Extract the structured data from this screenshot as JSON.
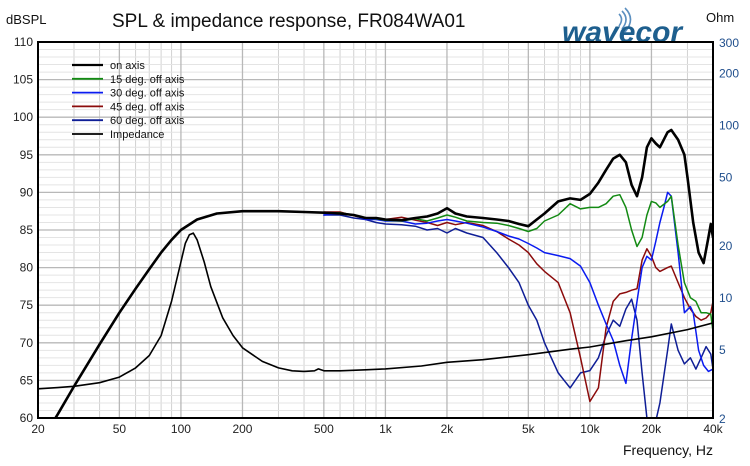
{
  "chart_data": {
    "type": "line",
    "title": "SPL & impedance response, FR084WA01",
    "brand": "wavecor",
    "ylabel": "dBSPL",
    "y2label": "Ohm",
    "xlabel": "Frequency, Hz",
    "xscale": "log",
    "xlim": [
      20,
      40000
    ],
    "ylim": [
      60,
      110
    ],
    "y2scale": "log",
    "y2lim": [
      2,
      300
    ],
    "grid": true,
    "legend_position": "top-left",
    "x_ticks": [
      {
        "value": 20,
        "label": "20"
      },
      {
        "value": 50,
        "label": "50"
      },
      {
        "value": 100,
        "label": "100"
      },
      {
        "value": 200,
        "label": "200"
      },
      {
        "value": 500,
        "label": "500"
      },
      {
        "value": 1000,
        "label": "1k"
      },
      {
        "value": 2000,
        "label": "2k"
      },
      {
        "value": 5000,
        "label": "5k"
      },
      {
        "value": 10000,
        "label": "10k"
      },
      {
        "value": 20000,
        "label": "20k"
      },
      {
        "value": 40000,
        "label": "40k"
      }
    ],
    "y_ticks": [
      60,
      65,
      70,
      75,
      80,
      85,
      90,
      95,
      100,
      105,
      110
    ],
    "y2_ticks": [
      2,
      5,
      10,
      20,
      50,
      100,
      200,
      300
    ],
    "series": [
      {
        "name": "on axis",
        "axis": "left",
        "color": "#000000",
        "width": 2.6,
        "points": [
          [
            22.5,
            58.5
          ],
          [
            25,
            60.5
          ],
          [
            30,
            64.2
          ],
          [
            40,
            69.8
          ],
          [
            50,
            74
          ],
          [
            60,
            77.2
          ],
          [
            70,
            79.8
          ],
          [
            80,
            82
          ],
          [
            90,
            83.7
          ],
          [
            100,
            85
          ],
          [
            120,
            86.4
          ],
          [
            150,
            87.2
          ],
          [
            200,
            87.5
          ],
          [
            300,
            87.5
          ],
          [
            400,
            87.4
          ],
          [
            500,
            87.3
          ],
          [
            600,
            87.2
          ],
          [
            700,
            87
          ],
          [
            800,
            86.6
          ],
          [
            900,
            86.6
          ],
          [
            1000,
            86.4
          ],
          [
            1200,
            86.3
          ],
          [
            1400,
            86.6
          ],
          [
            1600,
            86.8
          ],
          [
            1800,
            87.2
          ],
          [
            2000,
            87.9
          ],
          [
            2200,
            87.2
          ],
          [
            2500,
            86.8
          ],
          [
            3000,
            86.6
          ],
          [
            3500,
            86.4
          ],
          [
            4000,
            86.2
          ],
          [
            4500,
            85.8
          ],
          [
            5000,
            85.5
          ],
          [
            5500,
            86.4
          ],
          [
            6000,
            87.2
          ],
          [
            7000,
            88.8
          ],
          [
            8000,
            89.2
          ],
          [
            9000,
            89
          ],
          [
            10000,
            89.8
          ],
          [
            11000,
            91.3
          ],
          [
            12000,
            93
          ],
          [
            13000,
            94.5
          ],
          [
            14000,
            95
          ],
          [
            15000,
            94
          ],
          [
            16000,
            91
          ],
          [
            17000,
            89.5
          ],
          [
            18000,
            92
          ],
          [
            19000,
            96
          ],
          [
            20000,
            97.2
          ],
          [
            21000,
            96.5
          ],
          [
            22000,
            96
          ],
          [
            24000,
            98
          ],
          [
            25000,
            98.3
          ],
          [
            27000,
            97
          ],
          [
            29000,
            95
          ],
          [
            30000,
            92
          ],
          [
            32000,
            86
          ],
          [
            34000,
            82
          ],
          [
            36000,
            80.6
          ],
          [
            38000,
            84
          ],
          [
            39000,
            85.8
          ],
          [
            40000,
            84
          ]
        ]
      },
      {
        "name": "15 deg. off axis",
        "axis": "left",
        "color": "#138a13",
        "width": 1.5,
        "points": [
          [
            500,
            87.3
          ],
          [
            600,
            87.3
          ],
          [
            700,
            87
          ],
          [
            800,
            86.6
          ],
          [
            900,
            86.5
          ],
          [
            1000,
            86.3
          ],
          [
            1200,
            86.2
          ],
          [
            1400,
            86.5
          ],
          [
            1600,
            86.2
          ],
          [
            1800,
            86.6
          ],
          [
            2000,
            87
          ],
          [
            2200,
            86.7
          ],
          [
            2500,
            86.2
          ],
          [
            3000,
            86
          ],
          [
            3500,
            85.9
          ],
          [
            4000,
            85.6
          ],
          [
            4500,
            85.2
          ],
          [
            5000,
            84.8
          ],
          [
            5500,
            85.2
          ],
          [
            6000,
            86.2
          ],
          [
            7000,
            87
          ],
          [
            8000,
            88.5
          ],
          [
            9000,
            87.8
          ],
          [
            10000,
            88
          ],
          [
            11000,
            88
          ],
          [
            12000,
            88.5
          ],
          [
            13000,
            89.5
          ],
          [
            14000,
            89.7
          ],
          [
            15000,
            88
          ],
          [
            16000,
            85
          ],
          [
            17000,
            82.8
          ],
          [
            18000,
            84
          ],
          [
            19000,
            87
          ],
          [
            20000,
            88.8
          ],
          [
            21000,
            88.6
          ],
          [
            22000,
            88
          ],
          [
            24000,
            88.8
          ],
          [
            25000,
            89.5
          ],
          [
            27000,
            83
          ],
          [
            29000,
            78
          ],
          [
            31000,
            76
          ],
          [
            33000,
            75.5
          ],
          [
            35000,
            74
          ],
          [
            37000,
            74
          ],
          [
            39000,
            73.8
          ],
          [
            40000,
            71.5
          ]
        ]
      },
      {
        "name": "30 deg. off axis",
        "axis": "left",
        "color": "#0a1bf0",
        "width": 1.5,
        "points": [
          [
            500,
            87
          ],
          [
            600,
            87.2
          ],
          [
            700,
            87
          ],
          [
            800,
            86.4
          ],
          [
            900,
            86.4
          ],
          [
            1000,
            86.2
          ],
          [
            1200,
            86.2
          ],
          [
            1400,
            85.8
          ],
          [
            1600,
            85.9
          ],
          [
            1800,
            86.2
          ],
          [
            2000,
            86.4
          ],
          [
            2200,
            86.2
          ],
          [
            2500,
            85.9
          ],
          [
            3000,
            85.4
          ],
          [
            3500,
            84.8
          ],
          [
            4000,
            84.2
          ],
          [
            4500,
            83.8
          ],
          [
            5000,
            83.2
          ],
          [
            5500,
            82.6
          ],
          [
            6000,
            82
          ],
          [
            7000,
            81.6
          ],
          [
            8000,
            81.2
          ],
          [
            9000,
            80.2
          ],
          [
            10000,
            78
          ],
          [
            11000,
            75
          ],
          [
            12000,
            72.5
          ],
          [
            13000,
            70.3
          ],
          [
            14000,
            67
          ],
          [
            15000,
            64.6
          ],
          [
            16000,
            70.5
          ],
          [
            17000,
            75.5
          ],
          [
            18000,
            80
          ],
          [
            19000,
            81.5
          ],
          [
            20000,
            81
          ],
          [
            21000,
            83.5
          ],
          [
            22000,
            86
          ],
          [
            23000,
            88
          ],
          [
            24000,
            90
          ],
          [
            25000,
            89.5
          ],
          [
            27000,
            82
          ],
          [
            29000,
            74
          ],
          [
            31000,
            74.8
          ],
          [
            32000,
            74
          ],
          [
            34000,
            69
          ],
          [
            36000,
            67
          ],
          [
            38000,
            66.2
          ],
          [
            40000,
            66.5
          ]
        ]
      },
      {
        "name": "45 deg. off axis",
        "axis": "left",
        "color": "#8b0b0b",
        "width": 1.5,
        "points": [
          [
            500,
            87.4
          ],
          [
            600,
            87.4
          ],
          [
            700,
            86.9
          ],
          [
            800,
            86.5
          ],
          [
            900,
            86.6
          ],
          [
            1000,
            86.4
          ],
          [
            1200,
            86.7
          ],
          [
            1400,
            86.3
          ],
          [
            1600,
            86
          ],
          [
            1800,
            85.6
          ],
          [
            2000,
            86
          ],
          [
            2200,
            85.7
          ],
          [
            2500,
            86
          ],
          [
            3000,
            85.6
          ],
          [
            3500,
            84.8
          ],
          [
            4000,
            83.8
          ],
          [
            4500,
            83
          ],
          [
            5000,
            82
          ],
          [
            5500,
            80.5
          ],
          [
            6000,
            79.5
          ],
          [
            7000,
            78
          ],
          [
            8000,
            74
          ],
          [
            9000,
            68
          ],
          [
            10000,
            62.2
          ],
          [
            11000,
            64
          ],
          [
            12000,
            72
          ],
          [
            13000,
            75.5
          ],
          [
            14000,
            76.5
          ],
          [
            15000,
            76.7
          ],
          [
            16000,
            77
          ],
          [
            17000,
            77.2
          ],
          [
            18000,
            81
          ],
          [
            19000,
            82.5
          ],
          [
            20000,
            81.5
          ],
          [
            21000,
            80
          ],
          [
            22000,
            79.5
          ],
          [
            24000,
            80
          ],
          [
            25000,
            80.2
          ],
          [
            27000,
            78
          ],
          [
            29000,
            76
          ],
          [
            31000,
            74.5
          ],
          [
            33000,
            73.5
          ],
          [
            35000,
            73
          ],
          [
            37000,
            73.3
          ],
          [
            39000,
            74
          ],
          [
            40000,
            75.5
          ]
        ]
      },
      {
        "name": "60 deg. off axis",
        "axis": "left",
        "color": "#0f1e96",
        "width": 1.5,
        "points": [
          [
            500,
            87
          ],
          [
            600,
            87
          ],
          [
            700,
            86.6
          ],
          [
            800,
            86.4
          ],
          [
            900,
            86
          ],
          [
            1000,
            85.8
          ],
          [
            1200,
            85.7
          ],
          [
            1400,
            85.5
          ],
          [
            1600,
            85
          ],
          [
            1800,
            85.2
          ],
          [
            2000,
            84.6
          ],
          [
            2200,
            85.2
          ],
          [
            2500,
            84.6
          ],
          [
            3000,
            84
          ],
          [
            3500,
            82
          ],
          [
            4000,
            80
          ],
          [
            4500,
            78
          ],
          [
            5000,
            75
          ],
          [
            5500,
            73
          ],
          [
            6000,
            70
          ],
          [
            7000,
            66
          ],
          [
            8000,
            64
          ],
          [
            9000,
            66
          ],
          [
            10000,
            66.3
          ],
          [
            11000,
            68
          ],
          [
            12000,
            71
          ],
          [
            13000,
            73
          ],
          [
            14000,
            72.2
          ],
          [
            15000,
            74.5
          ],
          [
            16000,
            75.8
          ],
          [
            17000,
            73
          ],
          [
            18000,
            66
          ],
          [
            19000,
            60
          ],
          [
            20000,
            59.5
          ],
          [
            21000,
            59.6
          ],
          [
            22000,
            62
          ],
          [
            24000,
            69
          ],
          [
            25000,
            72.5
          ],
          [
            27000,
            69
          ],
          [
            29000,
            67.2
          ],
          [
            31000,
            68
          ],
          [
            33000,
            66.5
          ],
          [
            35000,
            68
          ],
          [
            37000,
            69.5
          ],
          [
            39000,
            68.5
          ],
          [
            40000,
            66.5
          ]
        ]
      },
      {
        "name": "Impedance",
        "axis": "right",
        "color": "#000000",
        "width": 1.6,
        "points": [
          [
            20,
            2.95
          ],
          [
            25,
            3.0
          ],
          [
            30,
            3.05
          ],
          [
            40,
            3.2
          ],
          [
            50,
            3.45
          ],
          [
            60,
            3.9
          ],
          [
            70,
            4.6
          ],
          [
            80,
            6.0
          ],
          [
            90,
            9.5
          ],
          [
            100,
            16
          ],
          [
            105,
            20.5
          ],
          [
            110,
            23
          ],
          [
            115,
            23.5
          ],
          [
            120,
            21.5
          ],
          [
            130,
            16
          ],
          [
            140,
            11.5
          ],
          [
            160,
            7.6
          ],
          [
            180,
            6.0
          ],
          [
            200,
            5.1
          ],
          [
            250,
            4.25
          ],
          [
            300,
            3.9
          ],
          [
            350,
            3.75
          ],
          [
            400,
            3.72
          ],
          [
            450,
            3.75
          ],
          [
            470,
            3.85
          ],
          [
            500,
            3.75
          ],
          [
            600,
            3.75
          ],
          [
            800,
            3.8
          ],
          [
            1000,
            3.85
          ],
          [
            1500,
            4.0
          ],
          [
            2000,
            4.2
          ],
          [
            3000,
            4.35
          ],
          [
            5000,
            4.65
          ],
          [
            8000,
            5.0
          ],
          [
            10000,
            5.15
          ],
          [
            15000,
            5.6
          ],
          [
            20000,
            5.9
          ],
          [
            30000,
            6.5
          ],
          [
            40000,
            7.1
          ]
        ]
      }
    ]
  }
}
